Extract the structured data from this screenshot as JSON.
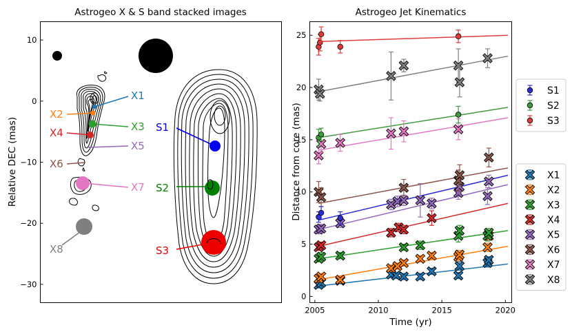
{
  "chart_data": [
    {
      "type": "contour-map",
      "title": "Astrogeo X & S band stacked images",
      "ylabel": "Relative DEC (mas)",
      "yticks": [
        "10",
        "0",
        "−10",
        "−20",
        "−30"
      ],
      "ylim": [
        -33,
        13
      ],
      "x_band_labels": [
        {
          "name": "X1",
          "color": "#1f77b4"
        },
        {
          "name": "X2",
          "color": "#ff7f0e"
        },
        {
          "name": "X3",
          "color": "#2ca02c"
        },
        {
          "name": "X4",
          "color": "#d62728"
        },
        {
          "name": "X5",
          "color": "#9467bd"
        },
        {
          "name": "X6",
          "color": "#8c564b"
        },
        {
          "name": "X7",
          "color": "#e377c2"
        },
        {
          "name": "X8",
          "color": "#7f7f7f"
        }
      ],
      "s_band_labels": [
        {
          "name": "S1",
          "color": "#0000ee"
        },
        {
          "name": "S2",
          "color": "#008000"
        },
        {
          "name": "S3",
          "color": "#ee0000"
        }
      ]
    },
    {
      "type": "scatter",
      "title": "Astrogeo Jet Kinematics",
      "xlabel": "Time (yr)",
      "ylabel": "Distance from core (mas)",
      "xlim": [
        2004.6,
        2020.5
      ],
      "ylim": [
        -0.6,
        26.3
      ],
      "xticks": [
        "2005",
        "2010",
        "2015",
        "2020"
      ],
      "yticks": [
        "0",
        "5",
        "10",
        "15",
        "20",
        "25"
      ],
      "s_series": [
        {
          "name": "S1",
          "color": "#2d2dd4",
          "fit": [
            7.3,
            11.6
          ],
          "points": [
            [
              2005.3,
              7.6,
              0.5
            ],
            [
              2005.5,
              8.0,
              0.6
            ],
            [
              2007.0,
              7.5,
              0.6
            ]
          ]
        },
        {
          "name": "S2",
          "color": "#3f9a3f",
          "fit": [
            15.2,
            18.1
          ],
          "points": [
            [
              2005.3,
              15.2,
              0.8
            ],
            [
              2005.5,
              15.5,
              0.6
            ],
            [
              2016.3,
              17.4,
              0.8
            ]
          ]
        },
        {
          "name": "S3",
          "color": "#dd3b3b",
          "fit": [
            24.4,
            25.0
          ],
          "points": [
            [
              2005.3,
              23.9,
              0.8
            ],
            [
              2005.4,
              24.3,
              0.8
            ],
            [
              2005.5,
              25.1,
              0.7
            ],
            [
              2007.0,
              23.9,
              0.6
            ],
            [
              2016.3,
              24.9,
              0.6
            ]
          ]
        }
      ],
      "x_series": [
        {
          "name": "X1",
          "color": "#1f77b4",
          "fit": [
            1.0,
            3.1
          ],
          "points": [
            [
              2005.3,
              1.1,
              0.3
            ],
            [
              2005.5,
              1.3,
              0.4
            ],
            [
              2007.0,
              1.5,
              0.3
            ],
            [
              2011.0,
              2.1,
              0.3
            ],
            [
              2011.4,
              2.0,
              0.3
            ],
            [
              2012.0,
              1.9,
              0.3
            ],
            [
              2013.3,
              1.9,
              0.3
            ],
            [
              2014.2,
              2.4,
              0.3
            ],
            [
              2016.3,
              2.0,
              0.3
            ],
            [
              2016.4,
              2.9,
              0.4
            ],
            [
              2018.6,
              3.2,
              0.4
            ],
            [
              2018.7,
              3.5,
              0.3
            ]
          ]
        },
        {
          "name": "X2",
          "color": "#ff7f0e",
          "fit": [
            1.6,
            4.8
          ],
          "points": [
            [
              2005.3,
              1.7,
              0.3
            ],
            [
              2005.5,
              1.9,
              0.3
            ],
            [
              2007.0,
              1.6,
              0.3
            ],
            [
              2011.0,
              2.7,
              0.3
            ],
            [
              2011.5,
              2.9,
              0.3
            ],
            [
              2012.0,
              3.2,
              0.3
            ],
            [
              2013.3,
              3.6,
              0.3
            ],
            [
              2014.2,
              3.9,
              0.3
            ],
            [
              2016.3,
              3.8,
              0.4
            ],
            [
              2016.4,
              4.0,
              0.4
            ],
            [
              2018.6,
              4.7,
              0.4
            ],
            [
              2018.7,
              5.8,
              0.4
            ]
          ]
        },
        {
          "name": "X3",
          "color": "#2ca02c",
          "fit": [
            3.6,
            6.3
          ],
          "points": [
            [
              2005.3,
              3.6,
              0.3
            ],
            [
              2005.5,
              3.8,
              0.4
            ],
            [
              2007.0,
              3.9,
              0.3
            ],
            [
              2012.0,
              4.7,
              0.3
            ],
            [
              2013.3,
              4.9,
              0.4
            ],
            [
              2016.3,
              5.8,
              0.6
            ],
            [
              2016.4,
              6.3,
              0.5
            ],
            [
              2018.6,
              5.8,
              0.5
            ],
            [
              2018.7,
              6.1,
              0.4
            ]
          ]
        },
        {
          "name": "X4",
          "color": "#d62728",
          "fit": [
            4.8,
            8.9
          ],
          "points": [
            [
              2005.3,
              4.7,
              0.3
            ],
            [
              2005.5,
              4.9,
              0.3
            ],
            [
              2011.0,
              6.1,
              0.4
            ],
            [
              2011.6,
              6.6,
              0.4
            ],
            [
              2012.0,
              6.4,
              0.4
            ],
            [
              2014.2,
              7.5,
              0.7
            ]
          ]
        },
        {
          "name": "X5",
          "color": "#9467bd",
          "fit": [
            6.4,
            10.7
          ],
          "points": [
            [
              2005.3,
              6.4,
              0.4
            ],
            [
              2005.5,
              6.5,
              0.4
            ],
            [
              2007.0,
              7.0,
              0.4
            ],
            [
              2011.0,
              8.8,
              0.5
            ],
            [
              2011.5,
              9.1,
              0.5
            ],
            [
              2012.0,
              9.2,
              0.5
            ],
            [
              2013.3,
              9.2,
              1.6
            ],
            [
              2014.2,
              8.9,
              0.5
            ],
            [
              2016.3,
              9.9,
              0.6
            ],
            [
              2016.4,
              10.5,
              0.6
            ],
            [
              2018.6,
              9.6,
              0.8
            ],
            [
              2018.7,
              11.0,
              0.6
            ]
          ]
        },
        {
          "name": "X6",
          "color": "#8c564b",
          "fit": [
            8.9,
            12.3
          ],
          "points": [
            [
              2005.3,
              10.0,
              1.0
            ],
            [
              2005.5,
              9.5,
              0.9
            ],
            [
              2012.0,
              10.4,
              0.8
            ],
            [
              2016.3,
              11.1,
              1.0
            ],
            [
              2016.4,
              11.6,
              1.0
            ],
            [
              2018.7,
              13.3,
              0.9
            ]
          ]
        },
        {
          "name": "X7",
          "color": "#e377c2",
          "fit": [
            14.0,
            17.1
          ],
          "points": [
            [
              2005.3,
              13.5,
              0.8
            ],
            [
              2005.5,
              14.6,
              0.8
            ],
            [
              2007.0,
              14.7,
              0.8
            ],
            [
              2011.0,
              15.6,
              1.5
            ],
            [
              2012.0,
              15.8,
              1.0
            ],
            [
              2016.3,
              16.0,
              1.0
            ]
          ]
        },
        {
          "name": "X8",
          "color": "#7f7f7f",
          "fit": [
            19.6,
            23.0
          ],
          "points": [
            [
              2005.3,
              19.8,
              1.0
            ],
            [
              2005.4,
              19.4,
              0.7
            ],
            [
              2011.0,
              21.1,
              2.3
            ],
            [
              2012.0,
              22.1,
              0.6
            ],
            [
              2016.3,
              22.1,
              1.6
            ],
            [
              2016.4,
              20.5,
              1.4
            ],
            [
              2018.6,
              22.8,
              0.9
            ]
          ]
        }
      ]
    }
  ]
}
